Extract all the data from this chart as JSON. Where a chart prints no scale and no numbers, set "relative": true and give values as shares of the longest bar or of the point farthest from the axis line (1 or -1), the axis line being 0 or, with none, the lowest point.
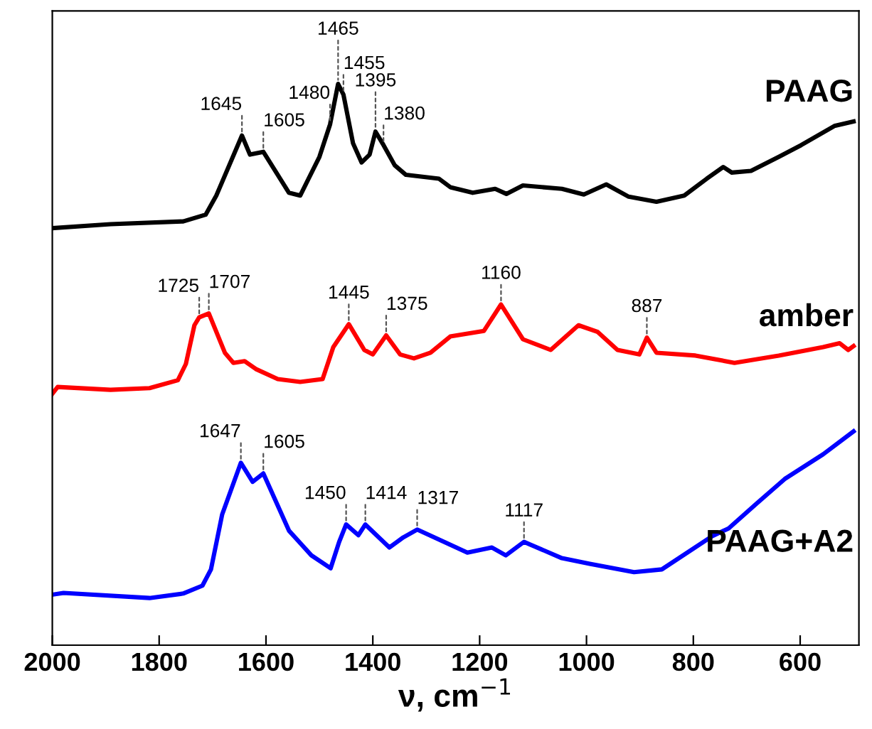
{
  "chart_data": {
    "type": "line",
    "relative": true,
    "xlabel": "ν, cm$^{−1}$",
    "xlim": [
      2000,
      490
    ],
    "xticks": [
      2000,
      1800,
      1600,
      1400,
      1200,
      1000,
      800,
      600
    ],
    "legend": false,
    "grid": false,
    "marker": "none",
    "line_style": "solid",
    "series": [
      {
        "name": "PAAG",
        "color": "#000000",
        "x": [
          2000,
          1891,
          1755,
          1713,
          1693,
          1645,
          1630,
          1605,
          1557,
          1536,
          1500,
          1480,
          1465,
          1455,
          1437,
          1421,
          1406,
          1395,
          1380,
          1359,
          1338,
          1276,
          1255,
          1213,
          1171,
          1150,
          1119,
          1046,
          1005,
          963,
          921,
          869,
          817,
          775,
          744,
          728,
          692,
          640,
          598,
          536,
          500
        ],
        "values": [
          0.743,
          0.75,
          0.755,
          0.767,
          0.801,
          0.908,
          0.874,
          0.879,
          0.806,
          0.801,
          0.87,
          0.928,
          1.0,
          0.981,
          0.894,
          0.86,
          0.874,
          0.915,
          0.891,
          0.855,
          0.838,
          0.831,
          0.816,
          0.806,
          0.813,
          0.804,
          0.819,
          0.813,
          0.803,
          0.821,
          0.799,
          0.79,
          0.801,
          0.831,
          0.852,
          0.842,
          0.845,
          0.87,
          0.891,
          0.925,
          0.933
        ]
      },
      {
        "name": "amber",
        "color": "#ff0000",
        "x": [
          2000,
          1990,
          1891,
          1818,
          1765,
          1750,
          1734,
          1725,
          1707,
          1677,
          1661,
          1640,
          1619,
          1578,
          1536,
          1494,
          1474,
          1445,
          1416,
          1400,
          1375,
          1349,
          1323,
          1292,
          1255,
          1192,
          1160,
          1119,
          1067,
          1015,
          979,
          942,
          901,
          887,
          869,
          796,
          723,
          640,
          557,
          526,
          510,
          500
        ],
        "values": [
          0.448,
          0.46,
          0.455,
          0.458,
          0.472,
          0.501,
          0.57,
          0.584,
          0.591,
          0.521,
          0.503,
          0.506,
          0.492,
          0.474,
          0.469,
          0.474,
          0.531,
          0.572,
          0.526,
          0.518,
          0.552,
          0.518,
          0.511,
          0.521,
          0.55,
          0.56,
          0.607,
          0.545,
          0.526,
          0.57,
          0.558,
          0.526,
          0.518,
          0.548,
          0.521,
          0.516,
          0.503,
          0.516,
          0.531,
          0.538,
          0.526,
          0.533
        ]
      },
      {
        "name": "PAAG+A2",
        "color": "#0000ff",
        "x": [
          2000,
          1979,
          1818,
          1755,
          1719,
          1703,
          1682,
          1647,
          1625,
          1605,
          1557,
          1515,
          1479,
          1463,
          1450,
          1427,
          1414,
          1369,
          1343,
          1317,
          1223,
          1177,
          1151,
          1117,
          1046,
          994,
          911,
          859,
          765,
          734,
          682,
          629,
          557,
          500
        ],
        "values": [
          0.09,
          0.093,
          0.084,
          0.092,
          0.106,
          0.135,
          0.233,
          0.325,
          0.291,
          0.306,
          0.204,
          0.16,
          0.137,
          0.184,
          0.215,
          0.196,
          0.215,
          0.174,
          0.192,
          0.206,
          0.165,
          0.174,
          0.16,
          0.184,
          0.155,
          0.145,
          0.13,
          0.135,
          0.194,
          0.208,
          0.252,
          0.296,
          0.34,
          0.381
        ]
      }
    ],
    "annotations": [
      {
        "text": "1645",
        "x": 1645,
        "y": 0.908
      },
      {
        "text": "1605",
        "x": 1605,
        "y": 0.879
      },
      {
        "text": "1480",
        "x": 1480,
        "y": 0.928
      },
      {
        "text": "1465",
        "x": 1465,
        "y": 1.0
      },
      {
        "text": "1455",
        "x": 1455,
        "y": 0.981
      },
      {
        "text": "1395",
        "x": 1395,
        "y": 0.915
      },
      {
        "text": "1380",
        "x": 1380,
        "y": 0.891
      },
      {
        "text": "1725",
        "x": 1725,
        "y": 0.584
      },
      {
        "text": "1707",
        "x": 1707,
        "y": 0.591
      },
      {
        "text": "1445",
        "x": 1445,
        "y": 0.572
      },
      {
        "text": "1375",
        "x": 1375,
        "y": 0.552
      },
      {
        "text": "1160",
        "x": 1160,
        "y": 0.607
      },
      {
        "text": "887",
        "x": 887,
        "y": 0.548
      },
      {
        "text": "1647",
        "x": 1647,
        "y": 0.325
      },
      {
        "text": "1605",
        "x": 1605,
        "y": 0.306
      },
      {
        "text": "1450",
        "x": 1450,
        "y": 0.215
      },
      {
        "text": "1414",
        "x": 1414,
        "y": 0.215
      },
      {
        "text": "1317",
        "x": 1317,
        "y": 0.206
      },
      {
        "text": "1117",
        "x": 1117,
        "y": 0.184
      }
    ]
  }
}
